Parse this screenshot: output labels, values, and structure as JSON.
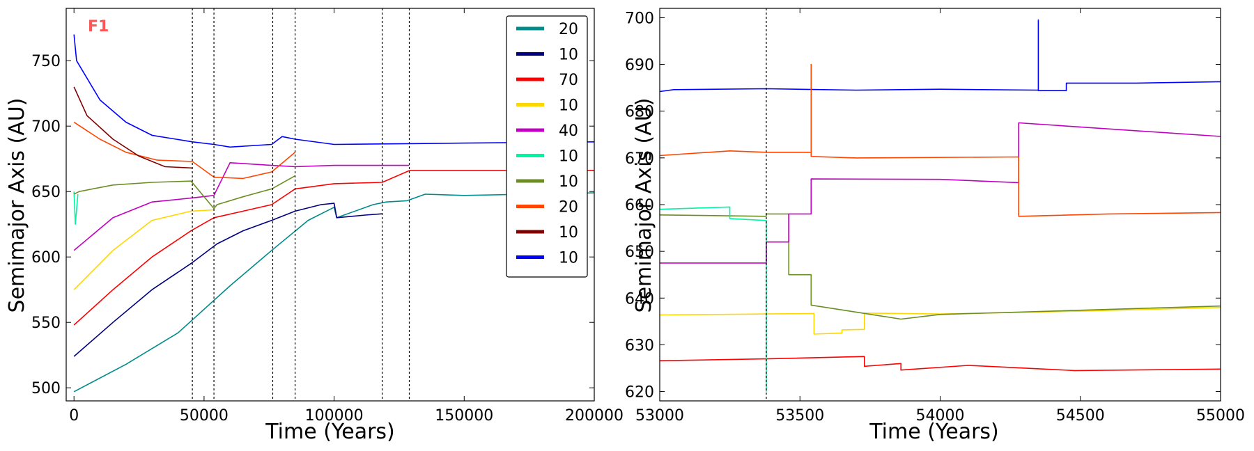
{
  "colors": {
    "teal": "#008b8b",
    "navy": "#000080",
    "red": "#ff0000",
    "gold": "#ffd700",
    "magenta": "#c000c0",
    "spring": "#00f5a0",
    "olive": "#6b8e23",
    "orangered": "#ff4500",
    "maroon": "#800000",
    "blue": "#0000ff",
    "tag": "#ff5555"
  },
  "chart_data": [
    {
      "type": "line",
      "panel_label": "F1",
      "xlabel": "Time (Years)",
      "ylabel": "Semimajor Axis (AU)",
      "xlim": [
        -3000,
        200000
      ],
      "ylim": [
        490,
        790
      ],
      "xticks": [
        0,
        50000,
        100000,
        150000,
        200000
      ],
      "xtick_labels": [
        "0",
        "50000",
        "100000",
        "150000",
        "200000"
      ],
      "yticks": [
        500,
        550,
        600,
        650,
        700,
        750
      ],
      "ytick_labels": [
        "500",
        "550",
        "600",
        "650",
        "700",
        "750"
      ],
      "grid": false,
      "legend_position": "top-right",
      "event_lines_x": [
        45500,
        53800,
        76400,
        85000,
        118500,
        128900
      ],
      "series": [
        {
          "name": "20",
          "color_key": "teal",
          "x": [
            0,
            20000,
            40000,
            60000,
            76000,
            90000,
            100000,
            101000,
            115000,
            120000,
            128000,
            135000,
            150000,
            200000
          ],
          "y": [
            497,
            518,
            542,
            578,
            605,
            628,
            638,
            630,
            640,
            642,
            643,
            648,
            647,
            649
          ]
        },
        {
          "name": "10",
          "color_key": "navy",
          "x": [
            0,
            15000,
            30000,
            45000,
            55000,
            65000,
            76000,
            85000,
            95000,
            100000,
            101000,
            112000,
            118500
          ],
          "y": [
            524,
            550,
            575,
            595,
            610,
            620,
            628,
            635,
            640,
            641,
            630,
            632,
            633
          ]
        },
        {
          "name": "70",
          "color_key": "red",
          "x": [
            0,
            15000,
            30000,
            45000,
            53800,
            65000,
            76000,
            85000,
            100000,
            118500,
            128900,
            200000
          ],
          "y": [
            548,
            575,
            600,
            620,
            630,
            635,
            640,
            652,
            656,
            657,
            666,
            666
          ]
        },
        {
          "name": "10",
          "color_key": "gold",
          "x": [
            0,
            15000,
            30000,
            45000,
            53800
          ],
          "y": [
            575,
            605,
            628,
            635,
            636
          ]
        },
        {
          "name": "40",
          "color_key": "magenta",
          "x": [
            0,
            15000,
            30000,
            45000,
            53800,
            60000,
            76000,
            85000,
            100000,
            128900
          ],
          "y": [
            605,
            630,
            642,
            645,
            647,
            672,
            670,
            669,
            670,
            670
          ]
        },
        {
          "name": "10",
          "color_key": "spring",
          "x": [
            0,
            500,
            1500
          ],
          "y": [
            650,
            625,
            648
          ]
        },
        {
          "name": "10",
          "color_key": "olive",
          "x": [
            0,
            2000,
            15000,
            30000,
            45000,
            53800,
            55000,
            65000,
            76000,
            85000
          ],
          "y": [
            648,
            650,
            655,
            657,
            658,
            637,
            640,
            646,
            652,
            662
          ]
        },
        {
          "name": "20",
          "color_key": "orangered",
          "x": [
            0,
            10000,
            20000,
            32000,
            45500,
            53800,
            65000,
            76000,
            85000
          ],
          "y": [
            703,
            690,
            680,
            674,
            673,
            661,
            660,
            665,
            680
          ]
        },
        {
          "name": "10",
          "color_key": "maroon",
          "x": [
            0,
            5000,
            15000,
            25000,
            35000,
            45500
          ],
          "y": [
            730,
            708,
            690,
            677,
            669,
            668
          ]
        },
        {
          "name": "10",
          "color_key": "blue",
          "x": [
            0,
            1000,
            10000,
            20000,
            30000,
            45500,
            53800,
            60000,
            76000,
            80000,
            85000,
            100000,
            150000,
            200000
          ],
          "y": [
            770,
            750,
            720,
            703,
            693,
            688,
            686,
            684,
            686,
            692,
            690,
            686,
            687,
            688
          ]
        }
      ]
    },
    {
      "type": "line",
      "xlabel": "Time (Years)",
      "ylabel": "Semimajor Axis (AU)",
      "xlim": [
        53000,
        55000
      ],
      "ylim": [
        618,
        702
      ],
      "xticks": [
        53000,
        53500,
        54000,
        54500,
        55000
      ],
      "xtick_labels": [
        "53000",
        "53500",
        "54000",
        "54500",
        "55000"
      ],
      "yticks": [
        620,
        630,
        640,
        650,
        660,
        670,
        680,
        690,
        700
      ],
      "ytick_labels": [
        "620",
        "630",
        "640",
        "650",
        "660",
        "670",
        "680",
        "690",
        "700"
      ],
      "grid": false,
      "legend_position": "none",
      "event_lines_x": [
        53380
      ],
      "series": [
        {
          "color_key": "blue",
          "x": [
            53000,
            53050,
            53380,
            53700,
            54000,
            54350,
            54350,
            54350,
            54450,
            54450,
            54700,
            55000
          ],
          "y": [
            684.2,
            684.6,
            684.8,
            684.5,
            684.7,
            684.5,
            699.5,
            684.4,
            684.4,
            686,
            686,
            686.3
          ]
        },
        {
          "color_key": "red",
          "x": [
            53000,
            53380,
            53730,
            53730,
            53860,
            53860,
            54100,
            54480,
            55000
          ],
          "y": [
            626.6,
            627,
            627.5,
            625.4,
            626,
            624.6,
            625.6,
            624.5,
            624.8
          ]
        },
        {
          "color_key": "gold",
          "x": [
            53000,
            53380,
            53550,
            53550,
            53650,
            53650,
            53730,
            53730,
            54000,
            54500,
            55000
          ],
          "y": [
            636.4,
            636.6,
            636.7,
            632.3,
            632.5,
            633.2,
            633.3,
            636.8,
            636.6,
            637.2,
            638
          ]
        },
        {
          "color_key": "olive",
          "x": [
            53000,
            53380,
            53380,
            53460,
            53460,
            53540,
            53540,
            53700,
            53860,
            54000,
            55000
          ],
          "y": [
            657.8,
            657.5,
            658,
            658,
            645,
            645,
            638.5,
            637,
            635.5,
            636.5,
            638.3
          ]
        },
        {
          "color_key": "spring",
          "x": [
            53000,
            53250,
            53250,
            53380,
            53380
          ],
          "y": [
            659,
            659.5,
            657,
            656.6,
            620
          ]
        },
        {
          "color_key": "magenta",
          "x": [
            53000,
            53380,
            53380,
            53460,
            53460,
            53540,
            53540,
            54000,
            54280,
            54280,
            55000
          ],
          "y": [
            647.5,
            647.5,
            652,
            652,
            658,
            658,
            665.5,
            665.4,
            664.7,
            677.5,
            674.6
          ]
        },
        {
          "color_key": "orangered",
          "x": [
            53000,
            53250,
            53380,
            53540,
            53540,
            53540,
            53700,
            54280,
            54280,
            54600,
            55000
          ],
          "y": [
            670.5,
            671.5,
            671.2,
            671.2,
            690,
            670.3,
            670,
            670.2,
            657.5,
            658,
            658.3
          ]
        }
      ]
    }
  ],
  "legend": {
    "entries": [
      {
        "label": "20",
        "color_key": "teal"
      },
      {
        "label": "10",
        "color_key": "navy"
      },
      {
        "label": "70",
        "color_key": "red"
      },
      {
        "label": "10",
        "color_key": "gold"
      },
      {
        "label": "40",
        "color_key": "magenta"
      },
      {
        "label": "10",
        "color_key": "spring"
      },
      {
        "label": "10",
        "color_key": "olive"
      },
      {
        "label": "20",
        "color_key": "orangered"
      },
      {
        "label": "10",
        "color_key": "maroon"
      },
      {
        "label": "10",
        "color_key": "blue"
      }
    ]
  }
}
